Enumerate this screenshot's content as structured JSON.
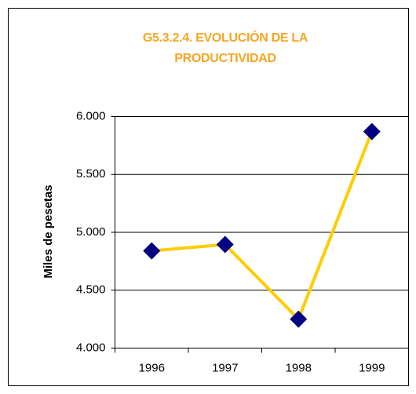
{
  "chart_data": {
    "type": "line",
    "title": "G5.3.2.4. EVOLUCIÓN DE LA PRODUCTIVIDAD",
    "y_label": "Miles de pesetas",
    "categories": [
      "1996",
      "1997",
      "1998",
      "1999"
    ],
    "series": [
      {
        "name": "Productividad",
        "color": "#ffcc00",
        "marker_color": "#000080",
        "values": [
          4840,
          4895,
          4250,
          5870
        ]
      }
    ],
    "ylim": [
      4000,
      6000
    ],
    "yticks": [
      {
        "value": 4000,
        "label": "4.000"
      },
      {
        "value": 4500,
        "label": "4.500"
      },
      {
        "value": 5000,
        "label": "5.000"
      },
      {
        "value": 5500,
        "label": "5.500"
      },
      {
        "value": 6000,
        "label": "6.000"
      }
    ],
    "grid": true
  }
}
